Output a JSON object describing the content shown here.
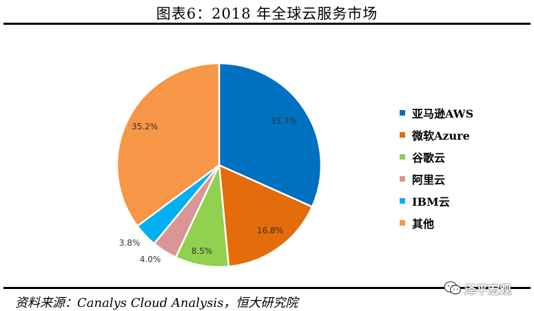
{
  "title": "图表6：2018 年全球云服务市场",
  "source": "资料来源：Canalys Cloud Analysis，恒大研究院",
  "watermark": "泽平宏观",
  "colors": {
    "aws": "#0070C0",
    "azure": "#E46C0A",
    "google": "#92D050",
    "aliyun": "#D99694",
    "ibm": "#00B0F0",
    "other": "#F79646"
  },
  "chart_data": {
    "type": "pie",
    "title": "图表6：2018 年全球云服务市场",
    "unit": "%",
    "legend_position": "right",
    "slices": [
      {
        "label": "亚马逊AWS",
        "value": 31.7,
        "display": "31.7%",
        "color": "#0070C0"
      },
      {
        "label": "微软Azure",
        "value": 16.8,
        "display": "16.8%",
        "color": "#E46C0A"
      },
      {
        "label": "谷歌云",
        "value": 8.5,
        "display": "8.5%",
        "color": "#92D050"
      },
      {
        "label": "阿里云",
        "value": 4.0,
        "display": "4.0%",
        "color": "#D99694"
      },
      {
        "label": "IBM云",
        "value": 3.8,
        "display": "3.8%",
        "color": "#00B0F0"
      },
      {
        "label": "其他",
        "value": 35.2,
        "display": "35.2%",
        "color": "#F79646"
      }
    ]
  }
}
